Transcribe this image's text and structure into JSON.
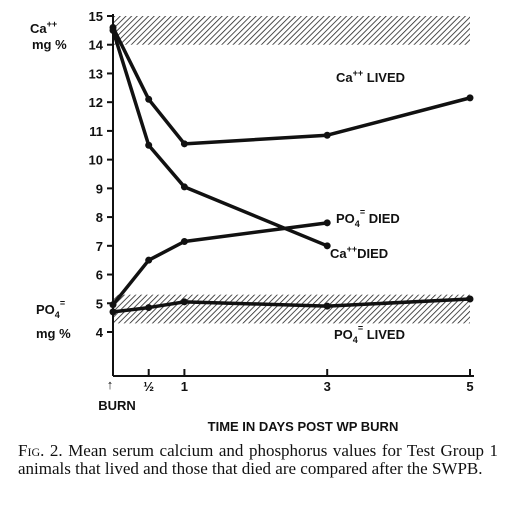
{
  "chart_data": {
    "type": "line",
    "xlabel": "TIME IN DAYS POST WP BURN",
    "x_ticks": [
      {
        "value": 0.5,
        "label": "½"
      },
      {
        "value": 1,
        "label": "1"
      },
      {
        "value": 3,
        "label": "3"
      },
      {
        "value": 5,
        "label": "5"
      }
    ],
    "xlim": [
      0,
      5
    ],
    "ylim": [
      3,
      15
    ],
    "y_ticks": [
      4,
      5,
      6,
      7,
      8,
      9,
      10,
      11,
      12,
      13,
      14,
      15
    ],
    "y_label_top": {
      "main": "Ca",
      "sup": "++",
      "unit": "mg %"
    },
    "y_label_bottom": {
      "main": "PO",
      "sub": "4",
      "sup": "=",
      "unit": "mg %"
    },
    "burn_marker": {
      "arrow": "↑",
      "label": "BURN",
      "x": 0
    },
    "normal_bands": [
      {
        "name": "calcium normal range",
        "ylim": [
          14,
          15
        ]
      },
      {
        "name": "phosphorus normal range",
        "ylim": [
          4.3,
          5.3
        ]
      }
    ],
    "series": [
      {
        "name": "Ca++ LIVED",
        "label_main": "Ca",
        "label_sup": "++",
        "label_rest": " LIVED",
        "x": [
          0,
          0.5,
          1,
          3,
          5
        ],
        "y": [
          14.6,
          12.1,
          10.55,
          10.85,
          12.15
        ]
      },
      {
        "name": "Ca++ DIED",
        "label_main": "Ca",
        "label_sup": "++",
        "label_rest": "DIED",
        "x": [
          0,
          0.5,
          1,
          3
        ],
        "y": [
          14.5,
          10.5,
          9.05,
          7.0
        ]
      },
      {
        "name": "PO4= DIED",
        "label_main": "PO",
        "label_sub": "4",
        "label_sup": "=",
        "label_rest": " DIED",
        "x": [
          0,
          0.5,
          1,
          3
        ],
        "y": [
          4.95,
          6.5,
          7.15,
          7.8
        ]
      },
      {
        "name": "PO4= LIVED",
        "label_main": "PO",
        "label_sub": "4",
        "label_sup": "=",
        "label_rest": " LIVED",
        "x": [
          0,
          0.5,
          1,
          3,
          5
        ],
        "y": [
          4.7,
          4.85,
          5.05,
          4.9,
          5.15
        ]
      }
    ]
  },
  "caption": {
    "lead": "Fig. 2.",
    "text": " Mean serum calcium and phosphorus values for Test Group 1 animals that lived and those that died are compared after the SWPB."
  }
}
